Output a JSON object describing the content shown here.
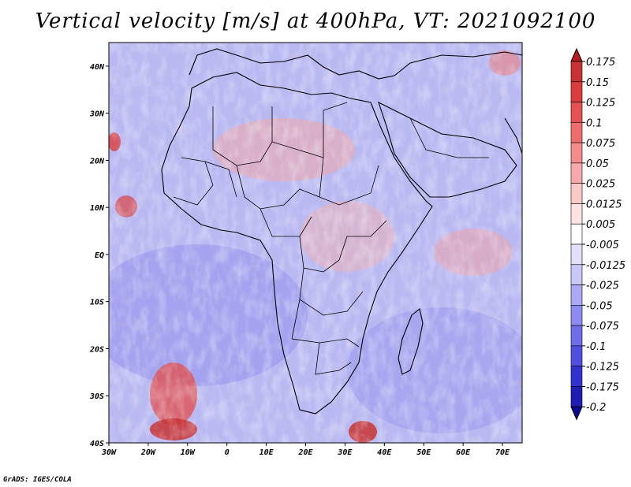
{
  "title": "Vertical velocity [m/s] at 400hPa, VT: 2021092100",
  "credit": "GrADS: IGES/COLA",
  "map": {
    "region": "Africa and surrounding oceans",
    "lon_range": [
      -30,
      75
    ],
    "lat_range": [
      -40,
      45
    ],
    "lon_ticks": [
      "30W",
      "20W",
      "10W",
      "0",
      "10E",
      "20E",
      "30E",
      "40E",
      "50E",
      "60E",
      "70E"
    ],
    "lat_ticks": [
      "40N",
      "30N",
      "20N",
      "10N",
      "EQ",
      "10S",
      "20S",
      "30S",
      "40S"
    ],
    "field": "vertical velocity",
    "level": "400hPa"
  },
  "colorbar": {
    "levels": [
      "0.175",
      "0.15",
      "0.125",
      "0.1",
      "0.075",
      "0.05",
      "0.025",
      "0.0125",
      "0.005",
      "-0.005",
      "-0.0125",
      "-0.025",
      "-0.05",
      "-0.075",
      "-0.1",
      "-0.125",
      "-0.175",
      "-0.2"
    ],
    "colors": [
      "#b41e1e",
      "#c83232",
      "#dc3c3c",
      "#e65050",
      "#ee6e6e",
      "#f48c8c",
      "#f8aaaa",
      "#fbc8c8",
      "#fde2e2",
      "#ffffff",
      "#e0e0fb",
      "#c8c8f8",
      "#aaaaf4",
      "#8c8cf0",
      "#6e6eea",
      "#5050e0",
      "#3232d0",
      "#1e1eb4",
      "#0a0a96"
    ]
  }
}
